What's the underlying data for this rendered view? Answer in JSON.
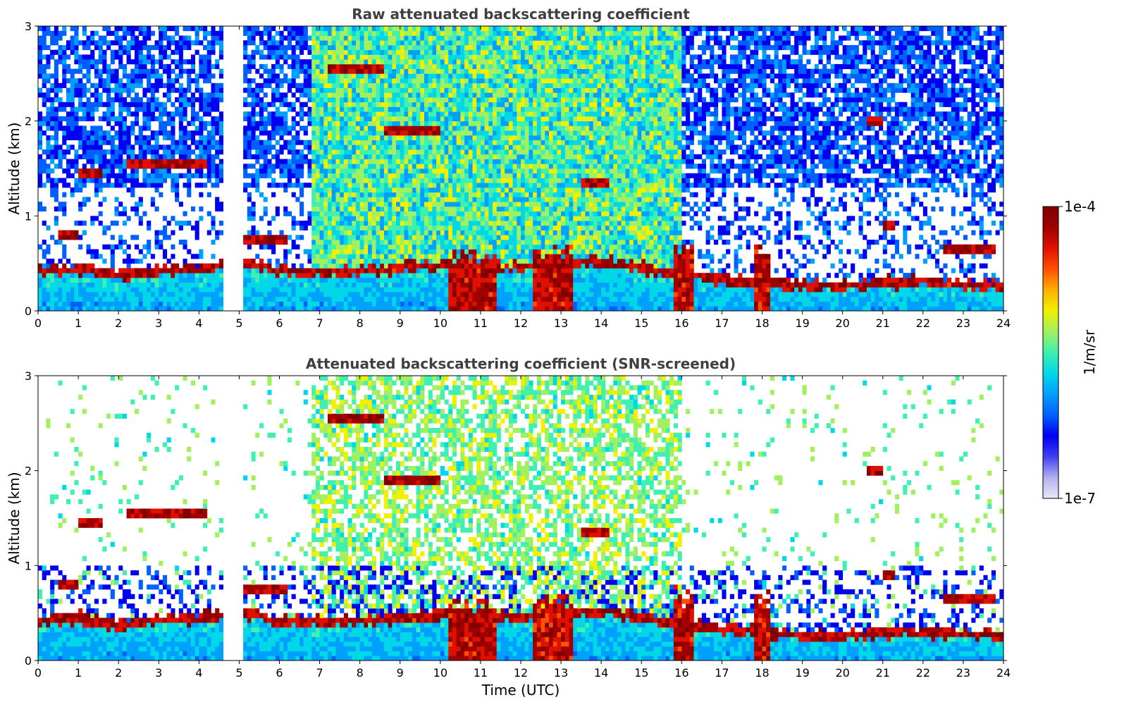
{
  "chart_data": [
    {
      "type": "heatmap",
      "id": "raw",
      "title": "Raw attenuated backscattering coefficient",
      "xlabel": "",
      "ylabel": "Altitude (km)",
      "xlim": [
        0,
        24
      ],
      "ylim": [
        0,
        3
      ],
      "xticks": [
        "0",
        "1",
        "2",
        "3",
        "4",
        "5",
        "6",
        "7",
        "8",
        "9",
        "10",
        "11",
        "12",
        "13",
        "14",
        "15",
        "16",
        "17",
        "18",
        "19",
        "20",
        "21",
        "22",
        "23",
        "24"
      ],
      "yticks": [
        "0",
        "1",
        "2",
        "3"
      ],
      "data_gap_hours": [
        4.65,
        5.05
      ],
      "boundary_layer_top_km": [
        [
          0,
          0.42
        ],
        [
          1,
          0.45
        ],
        [
          2,
          0.38
        ],
        [
          3,
          0.42
        ],
        [
          4,
          0.45
        ],
        [
          5,
          0.52
        ],
        [
          6,
          0.42
        ],
        [
          7,
          0.4
        ],
        [
          8,
          0.42
        ],
        [
          9,
          0.45
        ],
        [
          10,
          0.48
        ],
        [
          11,
          0.45
        ],
        [
          12,
          0.45
        ],
        [
          13,
          0.5
        ],
        [
          14,
          0.52
        ],
        [
          15,
          0.45
        ],
        [
          16,
          0.38
        ],
        [
          17,
          0.32
        ],
        [
          18,
          0.3
        ],
        [
          19,
          0.28
        ],
        [
          20,
          0.25
        ],
        [
          21,
          0.3
        ],
        [
          22,
          0.3
        ],
        [
          23,
          0.28
        ],
        [
          24,
          0.25
        ]
      ],
      "elevated_layers": [
        {
          "x0": 0.5,
          "x1": 1.0,
          "alt_km": 0.8
        },
        {
          "x0": 1.0,
          "x1": 1.6,
          "alt_km": 1.45
        },
        {
          "x0": 2.2,
          "x1": 4.2,
          "alt_km": 1.55
        },
        {
          "x0": 5.0,
          "x1": 6.2,
          "alt_km": 0.75
        },
        {
          "x0": 7.2,
          "x1": 8.6,
          "alt_km": 2.55
        },
        {
          "x0": 8.6,
          "x1": 10.0,
          "alt_km": 1.9
        },
        {
          "x0": 13.5,
          "x1": 14.2,
          "alt_km": 1.35
        },
        {
          "x0": 20.6,
          "x1": 21.0,
          "alt_km": 2.0
        },
        {
          "x0": 21.0,
          "x1": 21.3,
          "alt_km": 0.9
        },
        {
          "x0": 22.5,
          "x1": 23.8,
          "alt_km": 0.65
        }
      ],
      "deep_echoes": [
        {
          "x0": 10.2,
          "x1": 11.4,
          "top_km": 0.7
        },
        {
          "x0": 12.3,
          "x1": 13.3,
          "top_km": 0.75
        },
        {
          "x0": 15.8,
          "x1": 16.3,
          "top_km": 0.8
        },
        {
          "x0": 17.8,
          "x1": 18.2,
          "top_km": 0.75
        }
      ]
    },
    {
      "type": "heatmap",
      "id": "screened",
      "title": "Attenuated backscattering coefficient (SNR-screened)",
      "xlabel": "Time (UTC)",
      "ylabel": "Altitude (km)",
      "xlim": [
        0,
        24
      ],
      "ylim": [
        0,
        3
      ],
      "xticks": [
        "0",
        "1",
        "2",
        "3",
        "4",
        "5",
        "6",
        "7",
        "8",
        "9",
        "10",
        "11",
        "12",
        "13",
        "14",
        "15",
        "16",
        "17",
        "18",
        "19",
        "20",
        "21",
        "22",
        "23",
        "24"
      ],
      "yticks": [
        "0",
        "1",
        "2",
        "3"
      ],
      "data_gap_hours": [
        4.65,
        5.05
      ]
    }
  ],
  "colorbar": {
    "label": "1/m/sr",
    "max_label": "1e-4",
    "min_label": "1e-7",
    "colors": [
      "#e8e8f8",
      "#b0b0f0",
      "#4040f0",
      "#0000f0",
      "#0060ff",
      "#00a0ff",
      "#00d8e8",
      "#40f0b0",
      "#a0f060",
      "#f0f000",
      "#ffb000",
      "#ff5000",
      "#e01000",
      "#a00000",
      "#800000"
    ]
  }
}
